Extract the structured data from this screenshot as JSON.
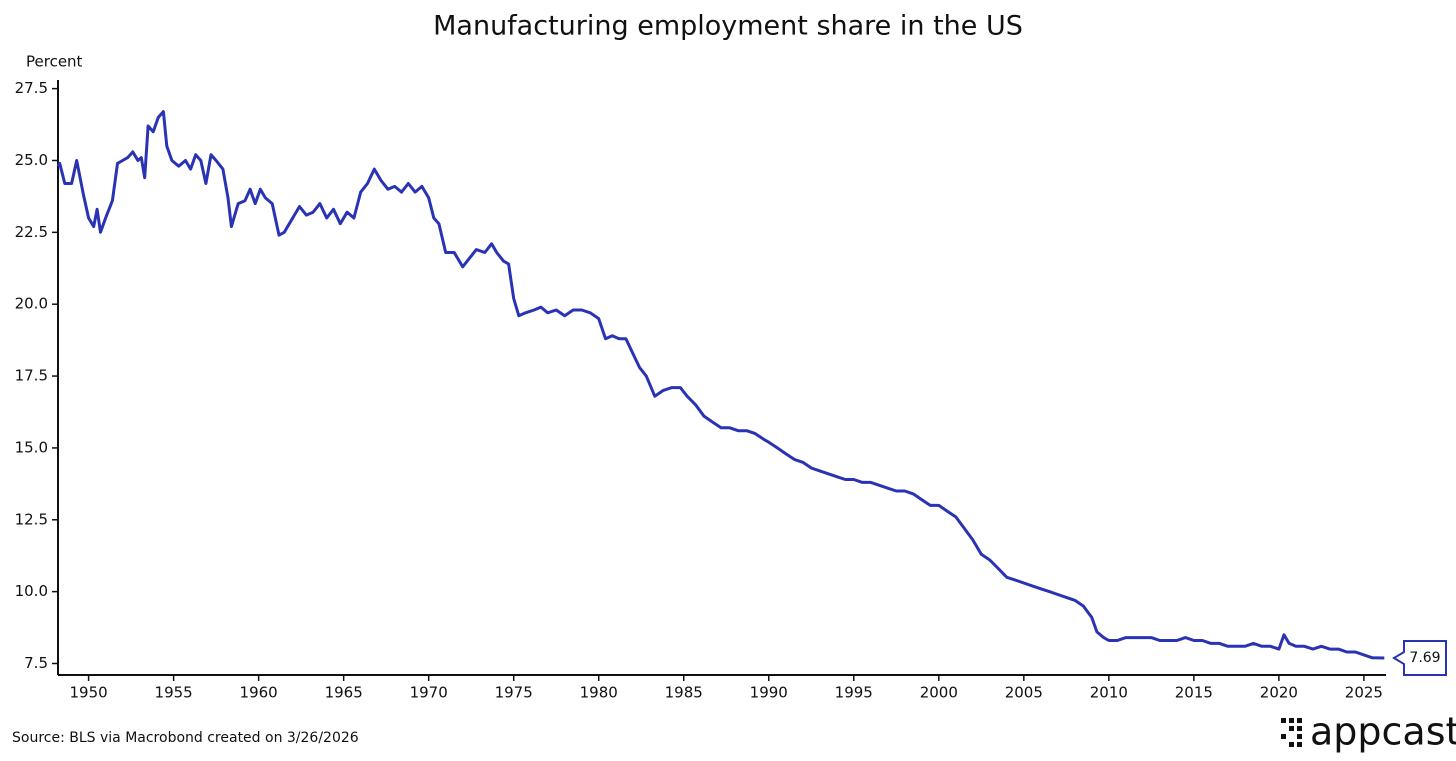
{
  "chart_data": {
    "type": "line",
    "title": "Manufacturing employment share in the US",
    "y_axis_label": "Percent",
    "source": "Source: BLS via Macrobond created on 3/26/2026",
    "logo": "appcast",
    "color": "#2b33b5",
    "end_value": 7.69,
    "xlim": [
      1948.2,
      2026.3
    ],
    "ylim": [
      7.1,
      27.8
    ],
    "xticks": [
      1950,
      1955,
      1960,
      1965,
      1970,
      1975,
      1980,
      1985,
      1990,
      1995,
      2000,
      2005,
      2010,
      2015,
      2020,
      2025
    ],
    "yticks": [
      {
        "value": 7.5,
        "label": "7.5"
      },
      {
        "value": 10,
        "label": "10.0"
      },
      12.5,
      {
        "value": 15,
        "label": "15.0"
      },
      17.5,
      {
        "value": 20,
        "label": "20.0"
      },
      22.5,
      {
        "value": 25,
        "label": "25.0"
      },
      27.5
    ],
    "x": [
      1948.2,
      1948.3,
      1948.6,
      1949.0,
      1949.3,
      1949.7,
      1950.0,
      1950.3,
      1950.5,
      1950.7,
      1951.0,
      1951.4,
      1951.7,
      1952.0,
      1952.3,
      1952.6,
      1952.9,
      1953.1,
      1953.3,
      1953.5,
      1953.8,
      1954.1,
      1954.4,
      1954.6,
      1954.9,
      1955.3,
      1955.7,
      1956.0,
      1956.3,
      1956.6,
      1956.9,
      1957.2,
      1957.5,
      1957.9,
      1958.2,
      1958.4,
      1958.8,
      1959.2,
      1959.5,
      1959.8,
      1960.1,
      1960.4,
      1960.8,
      1961.2,
      1961.5,
      1962.0,
      1962.4,
      1962.8,
      1963.2,
      1963.6,
      1964.0,
      1964.4,
      1964.8,
      1965.2,
      1965.6,
      1966.0,
      1966.4,
      1966.8,
      1967.2,
      1967.6,
      1968.0,
      1968.4,
      1968.8,
      1969.2,
      1969.6,
      1970.0,
      1970.3,
      1970.6,
      1971.0,
      1971.5,
      1972.0,
      1972.4,
      1972.8,
      1973.3,
      1973.7,
      1974.0,
      1974.4,
      1974.7,
      1975.0,
      1975.3,
      1975.7,
      1976.2,
      1976.6,
      1977.0,
      1977.5,
      1978.0,
      1978.5,
      1979.0,
      1979.5,
      1980.0,
      1980.4,
      1980.8,
      1981.2,
      1981.6,
      1982.0,
      1982.4,
      1982.8,
      1983.3,
      1983.8,
      1984.3,
      1984.8,
      1985.2,
      1985.7,
      1986.2,
      1986.7,
      1987.2,
      1987.7,
      1988.2,
      1988.7,
      1989.2,
      1989.7,
      1990.0,
      1990.5,
      1991.0,
      1991.5,
      1992.0,
      1992.5,
      1993.0,
      1993.5,
      1994.0,
      1994.5,
      1995.0,
      1995.5,
      1996.0,
      1996.5,
      1997.0,
      1997.5,
      1998.0,
      1998.5,
      1999.0,
      1999.5,
      2000.0,
      2000.5,
      2001.0,
      2001.5,
      2002.0,
      2002.5,
      2003.0,
      2003.5,
      2004.0,
      2004.5,
      2005.0,
      2005.5,
      2006.0,
      2006.5,
      2007.0,
      2007.5,
      2008.0,
      2008.5,
      2009.0,
      2009.3,
      2009.7,
      2010.0,
      2010.5,
      2011.0,
      2011.5,
      2012.0,
      2012.5,
      2013.0,
      2013.5,
      2014.0,
      2014.5,
      2015.0,
      2015.5,
      2016.0,
      2016.5,
      2017.0,
      2017.5,
      2018.0,
      2018.5,
      2019.0,
      2019.5,
      2020.0,
      2020.3,
      2020.6,
      2021.0,
      2021.5,
      2022.0,
      2022.5,
      2023.0,
      2023.5,
      2024.0,
      2024.5,
      2025.0,
      2025.5,
      2026.2
    ],
    "values": [
      24.8,
      24.9,
      24.2,
      24.2,
      25.0,
      23.8,
      23.0,
      22.7,
      23.3,
      22.5,
      23.0,
      23.6,
      24.9,
      25.0,
      25.1,
      25.3,
      25.0,
      25.1,
      24.4,
      26.2,
      26.0,
      26.5,
      26.7,
      25.5,
      25.0,
      24.8,
      25.0,
      24.7,
      25.2,
      25.0,
      24.2,
      25.2,
      25.0,
      24.7,
      23.7,
      22.7,
      23.5,
      23.6,
      24.0,
      23.5,
      24.0,
      23.7,
      23.5,
      22.4,
      22.5,
      23.0,
      23.4,
      23.1,
      23.2,
      23.5,
      23.0,
      23.3,
      22.8,
      23.2,
      23.0,
      23.9,
      24.2,
      24.7,
      24.3,
      24.0,
      24.1,
      23.9,
      24.2,
      23.9,
      24.1,
      23.7,
      23.0,
      22.8,
      21.8,
      21.8,
      21.3,
      21.6,
      21.9,
      21.8,
      22.1,
      21.8,
      21.5,
      21.4,
      20.2,
      19.6,
      19.7,
      19.8,
      19.9,
      19.7,
      19.8,
      19.6,
      19.8,
      19.8,
      19.7,
      19.5,
      18.8,
      18.9,
      18.8,
      18.8,
      18.3,
      17.8,
      17.5,
      16.8,
      17.0,
      17.1,
      17.1,
      16.8,
      16.5,
      16.1,
      15.9,
      15.7,
      15.7,
      15.6,
      15.6,
      15.5,
      15.3,
      15.2,
      15.0,
      14.8,
      14.6,
      14.5,
      14.3,
      14.2,
      14.1,
      14.0,
      13.9,
      13.9,
      13.8,
      13.8,
      13.7,
      13.6,
      13.5,
      13.5,
      13.4,
      13.2,
      13.0,
      13.0,
      12.8,
      12.6,
      12.2,
      11.8,
      11.3,
      11.1,
      10.8,
      10.5,
      10.4,
      10.3,
      10.2,
      10.1,
      10.0,
      9.9,
      9.8,
      9.7,
      9.5,
      9.1,
      8.6,
      8.4,
      8.3,
      8.3,
      8.4,
      8.4,
      8.4,
      8.4,
      8.3,
      8.3,
      8.3,
      8.4,
      8.3,
      8.3,
      8.2,
      8.2,
      8.1,
      8.1,
      8.1,
      8.2,
      8.1,
      8.1,
      8.0,
      8.5,
      8.2,
      8.1,
      8.1,
      8.0,
      8.1,
      8.0,
      8.0,
      7.9,
      7.9,
      7.8,
      7.7,
      7.69
    ]
  }
}
